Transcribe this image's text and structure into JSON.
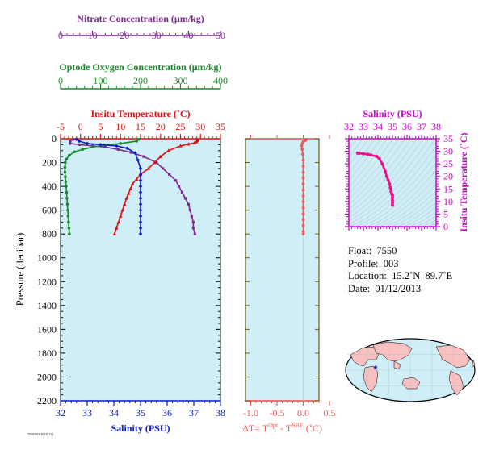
{
  "info": {
    "float_label": "Float:",
    "float_value": "7550",
    "profile_label": "Profile:",
    "profile_value": "003",
    "location_label": "Location:",
    "location_value": "15.2˚N  89.7˚E",
    "date_label": "Date:",
    "date_value": "01/12/2013"
  },
  "footer_text": "7550/003/20130112",
  "colors": {
    "panel_bg": "#d0eef8",
    "nitrate": "#7a2a8e",
    "oxygen": "#1a8a2a",
    "temperature": "#dd1111",
    "salinity": "#0a1ac8",
    "delta_t": "#ee5a5a",
    "ts_axis": "#cc00cc",
    "ts_data": "#ee1188",
    "delta_axis": "#6b5a12"
  },
  "chart_data": [
    {
      "type": "line",
      "id": "profile",
      "ylabel": "Pressure (decibar)",
      "ylim": [
        2200,
        0
      ],
      "y_ticks": [
        0,
        200,
        400,
        600,
        800,
        1000,
        1200,
        1400,
        1600,
        1800,
        2000,
        2200
      ],
      "y_tick_labels": [
        "0",
        "200",
        "400",
        "600",
        "800",
        "1000",
        "1200",
        "1400",
        "1600",
        "1800",
        "2000",
        "2200"
      ],
      "axes": {
        "nitrate": {
          "label": "Nitrate Concentration (μm/kg)",
          "range": [
            0,
            50
          ],
          "ticks": [
            0,
            10,
            20,
            30,
            40,
            50
          ],
          "tick_labels": [
            "0",
            "10",
            "20",
            "30",
            "40",
            "50"
          ]
        },
        "oxygen": {
          "label": "Optode Oxygen Concentration (μm/kg)",
          "range": [
            0,
            400
          ],
          "ticks": [
            0,
            100,
            200,
            300,
            400
          ],
          "tick_labels": [
            "0",
            "100",
            "200",
            "300",
            "400"
          ]
        },
        "temperature": {
          "label": "Insitu Temperature (˚C)",
          "range": [
            -5,
            35
          ],
          "ticks": [
            -5,
            0,
            5,
            10,
            15,
            20,
            25,
            30,
            35
          ],
          "tick_labels": [
            "-5",
            "0",
            "5",
            "10",
            "15",
            "20",
            "25",
            "30",
            "35"
          ]
        },
        "salinity": {
          "label": "Salinity (PSU)",
          "range": [
            32,
            38
          ],
          "ticks": [
            32,
            33,
            34,
            35,
            36,
            37,
            38
          ],
          "tick_labels": [
            "32",
            "33",
            "34",
            "35",
            "36",
            "37",
            "38"
          ]
        }
      },
      "series": [
        {
          "key": "nitrate",
          "axis": "nitrate",
          "marker": "square",
          "points": [
            [
              4,
              5
            ],
            [
              3,
              20
            ],
            [
              3,
              40
            ],
            [
              6,
              50
            ],
            [
              10,
              60
            ],
            [
              14,
              70
            ],
            [
              18,
              90
            ],
            [
              22,
              115
            ],
            [
              26,
              150
            ],
            [
              30,
              200
            ],
            [
              32,
              250
            ],
            [
              34,
              300
            ],
            [
              36,
              350
            ],
            [
              37,
              400
            ],
            [
              38,
              450
            ],
            [
              39,
              500
            ],
            [
              40,
              550
            ],
            [
              40.5,
              600
            ],
            [
              41,
              650
            ],
            [
              41.5,
              700
            ],
            [
              41.5,
              750
            ],
            [
              42,
              800
            ]
          ]
        },
        {
          "key": "oxygen",
          "axis": "oxygen",
          "marker": "circle",
          "points": [
            [
              195,
              5
            ],
            [
              190,
              20
            ],
            [
              150,
              40
            ],
            [
              110,
              55
            ],
            [
              80,
              70
            ],
            [
              55,
              90
            ],
            [
              35,
              110
            ],
            [
              22,
              140
            ],
            [
              15,
              170
            ],
            [
              12,
              200
            ],
            [
              11,
              240
            ],
            [
              11,
              280
            ],
            [
              12,
              320
            ],
            [
              13,
              360
            ],
            [
              14,
              400
            ],
            [
              15,
              450
            ],
            [
              16,
              500
            ],
            [
              17,
              550
            ],
            [
              18,
              600
            ],
            [
              19,
              650
            ],
            [
              20,
              700
            ],
            [
              21,
              750
            ],
            [
              22,
              800
            ]
          ]
        },
        {
          "key": "temperature",
          "axis": "temperature",
          "marker": "triangle",
          "points": [
            [
              29.3,
              5
            ],
            [
              29.2,
              15
            ],
            [
              29,
              25
            ],
            [
              28.5,
              35
            ],
            [
              27,
              45
            ],
            [
              25,
              60
            ],
            [
              22,
              100
            ],
            [
              20,
              150
            ],
            [
              18.5,
              200
            ],
            [
              17,
              250
            ],
            [
              15,
              300
            ],
            [
              14,
              340
            ],
            [
              13,
              380
            ],
            [
              12.5,
              420
            ],
            [
              12,
              460
            ],
            [
              11.5,
              500
            ],
            [
              11,
              550
            ],
            [
              10.5,
              600
            ],
            [
              10,
              650
            ],
            [
              9.5,
              700
            ],
            [
              9,
              750
            ],
            [
              8.5,
              800
            ]
          ]
        },
        {
          "key": "salinity",
          "axis": "salinity",
          "marker": "diamond",
          "points": [
            [
              32.6,
              5
            ],
            [
              32.7,
              20
            ],
            [
              33,
              40
            ],
            [
              33.5,
              50
            ],
            [
              34.1,
              60
            ],
            [
              34.5,
              80
            ],
            [
              34.8,
              120
            ],
            [
              34.9,
              180
            ],
            [
              35,
              250
            ],
            [
              35,
              300
            ],
            [
              35,
              350
            ],
            [
              35,
              400
            ],
            [
              35,
              450
            ],
            [
              35,
              500
            ],
            [
              35,
              550
            ],
            [
              35,
              600
            ],
            [
              35,
              650
            ],
            [
              35,
              700
            ],
            [
              35,
              750
            ],
            [
              35,
              800
            ]
          ]
        }
      ]
    },
    {
      "type": "line",
      "id": "delta_t",
      "xlabel": "ΔT= T^Opt - T^SBE (˚C)",
      "xlabel_base": "ΔT= T",
      "xlabel_sup1": "Opt",
      "xlabel_mid": " - T",
      "xlabel_sup2": "SBE",
      "xlabel_tail": " (˚C)",
      "xlim": [
        -1.1,
        0.3
      ],
      "ylim": [
        2200,
        0
      ],
      "x_ticks": [
        -1.0,
        -0.5,
        0.0,
        0.5
      ],
      "x_tick_labels": [
        "-1.0",
        "-0.5",
        "0.0",
        "0.5"
      ],
      "series": [
        {
          "key": "delta",
          "marker": "circle",
          "points": [
            [
              0.05,
              5
            ],
            [
              0.04,
              15
            ],
            [
              0,
              25
            ],
            [
              -0.02,
              40
            ],
            [
              -0.03,
              60
            ],
            [
              -0.02,
              90
            ],
            [
              -0.01,
              130
            ],
            [
              0,
              180
            ],
            [
              0,
              230
            ],
            [
              0,
              280
            ],
            [
              0,
              330
            ],
            [
              0,
              380
            ],
            [
              0,
              430
            ],
            [
              0,
              480
            ],
            [
              0,
              530
            ],
            [
              0,
              580
            ],
            [
              0,
              630
            ],
            [
              0,
              680
            ],
            [
              0,
              730
            ],
            [
              0,
              780
            ],
            [
              0,
              800
            ]
          ]
        }
      ]
    },
    {
      "type": "scatter",
      "id": "ts_diagram",
      "title": "Salinity (PSU)",
      "ylabel": "Insitu Temperature (˚C)",
      "xlim": [
        32,
        38
      ],
      "ylim": [
        0,
        35
      ],
      "x_ticks": [
        32,
        33,
        34,
        35,
        36,
        37,
        38
      ],
      "x_tick_labels": [
        "32",
        "33",
        "34",
        "35",
        "36",
        "37",
        "38"
      ],
      "y_ticks": [
        0,
        5,
        10,
        15,
        20,
        25,
        30,
        35
      ],
      "y_tick_labels": [
        "0",
        "5",
        "10",
        "15",
        "20",
        "25",
        "30",
        "35"
      ],
      "points": [
        [
          32.6,
          29.3
        ],
        [
          32.7,
          29.2
        ],
        [
          33,
          29
        ],
        [
          33.3,
          28.8
        ],
        [
          33.5,
          28.5
        ],
        [
          33.9,
          28
        ],
        [
          34.1,
          27
        ],
        [
          34.3,
          25
        ],
        [
          34.5,
          22
        ],
        [
          34.6,
          20
        ],
        [
          34.7,
          18.5
        ],
        [
          34.8,
          17
        ],
        [
          34.85,
          15.5
        ],
        [
          34.9,
          14
        ],
        [
          34.95,
          13
        ],
        [
          35,
          12.5
        ],
        [
          35,
          11.5
        ],
        [
          35,
          10.5
        ],
        [
          35,
          9.5
        ],
        [
          35,
          8.5
        ]
      ]
    }
  ]
}
